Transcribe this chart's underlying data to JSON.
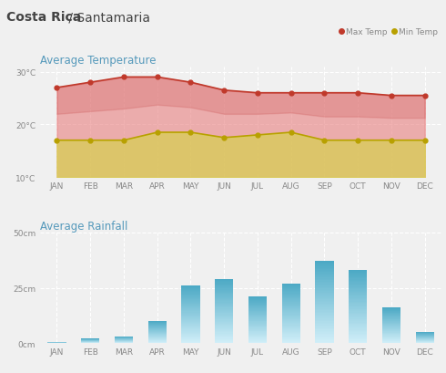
{
  "title_main": "Costa Rica",
  "title_sub": " / Santamaria",
  "months": [
    "JAN",
    "FEB",
    "MAR",
    "APR",
    "MAY",
    "JUN",
    "JUL",
    "AUG",
    "SEP",
    "OCT",
    "NOV",
    "DEC"
  ],
  "max_temp": [
    27,
    28,
    29,
    29,
    28,
    26.5,
    26,
    26,
    26,
    26,
    25.5,
    25.5
  ],
  "min_temp": [
    17,
    17,
    17,
    18.5,
    18.5,
    17.5,
    18,
    18.5,
    17,
    17,
    17,
    17
  ],
  "rainfall": [
    0.5,
    2,
    3,
    10,
    26,
    29,
    21,
    27,
    37,
    33,
    16,
    5
  ],
  "temp_ylim": [
    10,
    31
  ],
  "temp_yticks": [
    10,
    20,
    30
  ],
  "rain_ylim": [
    0,
    50
  ],
  "rain_yticks": [
    0,
    25,
    50
  ],
  "max_temp_color": "#c0392b",
  "min_temp_color": "#b8a000",
  "fill_max_color": "#e07070",
  "fill_min_color": "#c8c030",
  "bar_color_top": "#4aa8c4",
  "bar_color_bottom": "#c8e8f4",
  "bg_color": "#f0f0f0",
  "grid_color": "#ffffff",
  "title_color": "#444444",
  "section_label_color": "#5599bb",
  "tick_label_color": "#888888",
  "temp_section_title": "Average Temperature",
  "rain_section_title": "Average Rainfall",
  "legend_max": "Max Temp",
  "legend_min": "Min Temp"
}
